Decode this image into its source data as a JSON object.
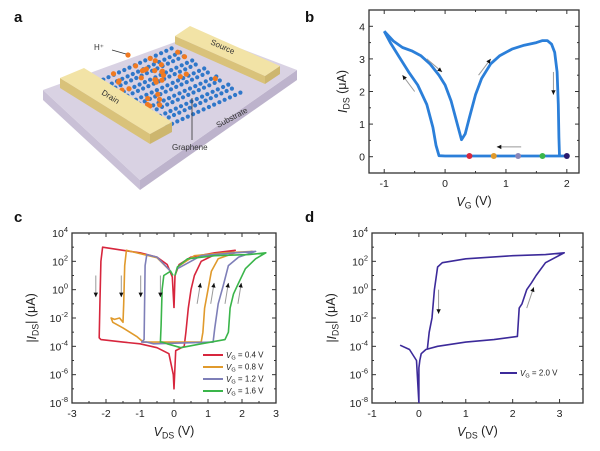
{
  "panels": {
    "a": {
      "letter": "a",
      "labels": {
        "ion": "H⁺",
        "source": "Source",
        "drain": "Drain",
        "substrate": "Substrate",
        "graphene": "Graphene"
      },
      "colors": {
        "substrate": "#d9d2e3",
        "electrode": "#f2e3a6",
        "carbon": "#2f77c9",
        "proton": "#f07a22"
      }
    },
    "b": {
      "letter": "b"
    },
    "c": {
      "letter": "c"
    },
    "d": {
      "letter": "d"
    }
  },
  "chart_data": [
    {
      "panel": "b",
      "type": "line",
      "xlabel": [
        "V",
        "G",
        " (V)"
      ],
      "ylabel": [
        "I",
        "DS",
        " (μA)"
      ],
      "xlim": [
        -1.25,
        2.2
      ],
      "ylim": [
        -0.5,
        4.5
      ],
      "yscale": "linear",
      "xticks": [
        -1,
        0,
        1,
        2
      ],
      "xtick_labels": [
        "-1",
        "0",
        "1",
        "2"
      ],
      "yticks": [
        0,
        1,
        2,
        3,
        4
      ],
      "ytick_labels": [
        "0",
        "1",
        "2",
        "3",
        "4"
      ],
      "grid": false,
      "series": [
        {
          "color": "#2b7fd9",
          "x": [
            -1,
            -0.85,
            -0.7,
            -0.55,
            -0.4,
            -0.25,
            -0.1,
            0,
            0.1,
            0.2,
            0.27,
            0.33,
            0.4,
            0.5,
            0.6,
            0.75,
            0.9,
            1.1,
            1.3,
            1.5,
            1.6,
            1.68,
            1.75,
            1.8,
            1.84,
            1.86,
            1.87,
            1.88,
            2.0,
            1.6,
            1.2,
            0.8,
            0.4,
            0,
            -0.1,
            -0.15,
            -0.2,
            -0.3,
            -0.45,
            -0.6,
            -0.75,
            -0.9,
            -1
          ],
          "y": [
            3.85,
            3.55,
            3.35,
            3.25,
            3.1,
            2.85,
            2.5,
            2.2,
            1.7,
            1.0,
            0.52,
            0.7,
            1.2,
            1.9,
            2.4,
            2.85,
            3.1,
            3.3,
            3.42,
            3.5,
            3.56,
            3.56,
            3.45,
            3.2,
            2.6,
            1.6,
            0.6,
            0.02,
            0.02,
            0.02,
            0.02,
            0.02,
            0.02,
            0.02,
            0.03,
            0.35,
            0.9,
            1.6,
            2.2,
            2.6,
            3.05,
            3.5,
            3.85
          ]
        }
      ],
      "markers": [
        {
          "x": 0.4,
          "y": 0.02,
          "color": "#d7263d"
        },
        {
          "x": 0.8,
          "y": 0.02,
          "color": "#e09a2c"
        },
        {
          "x": 1.2,
          "y": 0.02,
          "color": "#8a86b8"
        },
        {
          "x": 1.6,
          "y": 0.02,
          "color": "#3ab54a"
        },
        {
          "x": 2.0,
          "y": 0.02,
          "color": "#2a1a6e"
        }
      ],
      "annotations": [
        {
          "type": "arrow",
          "x": [
            -0.3,
            -0.05
          ],
          "y": [
            3.0,
            2.6
          ]
        },
        {
          "type": "arrow",
          "x": [
            0.55,
            0.75
          ],
          "y": [
            2.5,
            3.0
          ]
        },
        {
          "type": "arrow",
          "x": [
            1.78,
            1.78
          ],
          "y": [
            2.6,
            1.9
          ]
        },
        {
          "type": "arrow",
          "x": [
            1.25,
            0.85
          ],
          "y": [
            0.3,
            0.3
          ]
        },
        {
          "type": "arrow",
          "x": [
            -0.5,
            -0.7
          ],
          "y": [
            2.0,
            2.5
          ]
        }
      ]
    },
    {
      "panel": "c",
      "type": "line",
      "xlabel": [
        "V",
        "DS",
        " (V)"
      ],
      "ylabel": [
        "|I",
        "DS",
        "| (μA)"
      ],
      "xlim": [
        -3,
        3
      ],
      "ylim": [
        1e-08,
        10000.0
      ],
      "yscale": "log",
      "xticks": [
        -3,
        -2,
        -1,
        0,
        1,
        2,
        3
      ],
      "xtick_labels": [
        "-3",
        "-2",
        "-1",
        "0",
        "1",
        "2",
        "3"
      ],
      "yticks": [
        1e-08,
        1e-06,
        0.0001,
        0.01,
        1,
        100.0,
        10000.0
      ],
      "ytick_labels": [
        "10^-8",
        "10^-6",
        "10^-4",
        "10^-2",
        "10^0",
        "10^2",
        "10^4"
      ],
      "grid": false,
      "legend": "lower-right",
      "series": [
        {
          "name": [
            "V",
            "G",
            " = 0.4 V"
          ],
          "color": "#d7263d",
          "x": [
            0,
            -0.05,
            -0.2,
            -0.5,
            -1,
            -1.5,
            -2.1,
            -2.15,
            -2.18,
            -2.2,
            -2.15,
            -1.5,
            -1,
            -0.5,
            -0.15,
            -0.02,
            0,
            0.05,
            0.3,
            0.35,
            0.42,
            0.5,
            0.6,
            0.8,
            1.2,
            1.8,
            1.2,
            0.5,
            0.15,
            0.03,
            0
          ],
          "y": [
            0.05,
            8,
            60,
            200,
            400,
            600,
            1000,
            100,
            0.1,
            0.0004,
            0.0003,
            0.0002,
            0.00015,
            8e-05,
            3e-05,
            1e-06,
            1e-07,
            5e-05,
            0.0001,
            0.001,
            0.05,
            1,
            10,
            100,
            300,
            600,
            400,
            200,
            60,
            10,
            0.05
          ]
        },
        {
          "name": [
            "V",
            "G",
            " = 0.8 V"
          ],
          "color": "#e09a2c",
          "x": [
            -0.1,
            -0.5,
            -1,
            -1.4,
            -1.45,
            -1.48,
            -1.5,
            -1.6,
            -1.75,
            -1.85,
            -1.8,
            -1.5,
            -1.3,
            -1.1,
            -0.9,
            0.8,
            0.85,
            0.9,
            1.0,
            1.1,
            1.3,
            1.8,
            2.3,
            1.5,
            0.6,
            0.1
          ],
          "y": [
            20,
            180,
            350,
            600,
            50,
            0.1,
            0.005,
            0.01,
            0.008,
            0.01,
            0.005,
            0.002,
            0.001,
            0.0005,
            0.0002,
            0.0002,
            0.001,
            0.05,
            1,
            20,
            150,
            400,
            500,
            400,
            250,
            40
          ]
        },
        {
          "name": [
            "V",
            "G",
            " = 1.2 V"
          ],
          "color": "#7e7fb8",
          "x": [
            -0.1,
            -0.5,
            -0.8,
            -0.85,
            -0.87,
            -0.88,
            -0.95,
            -0.8,
            -0.6,
            1.15,
            1.2,
            1.3,
            1.45,
            1.6,
            1.9,
            2.4,
            1.8,
            0.8,
            0.1
          ],
          "y": [
            20,
            200,
            300,
            50,
            0.01,
            0.0003,
            0.0002,
            0.0002,
            0.00015,
            0.0002,
            0.002,
            0.1,
            2,
            50,
            200,
            500,
            400,
            250,
            30
          ]
        },
        {
          "name": [
            "V",
            "G",
            " = 1.6 V"
          ],
          "color": "#3ab54a",
          "x": [
            -0.03,
            -0.1,
            -0.3,
            -0.35,
            -0.38,
            -0.4,
            -0.35,
            -0.2,
            0.2,
            0.8,
            1.5,
            1.6,
            1.65,
            1.75,
            1.9,
            2.1,
            2.4,
            2.7,
            2.2,
            1.2,
            0.4,
            0.1,
            0.03
          ],
          "y": [
            10,
            20,
            10,
            1,
            0.003,
            0.0002,
            0.0002,
            0.00015,
            8e-05,
            0.00015,
            0.0003,
            0.001,
            0.05,
            0.5,
            3,
            30,
            150,
            400,
            300,
            250,
            150,
            40,
            10
          ]
        }
      ],
      "annotations": [
        {
          "type": "arrow",
          "x": [
            -2.3,
            -2.3
          ],
          "y": [
            10,
            0.3
          ]
        },
        {
          "type": "arrow",
          "x": [
            -1.55,
            -1.55
          ],
          "y": [
            10,
            0.3
          ]
        },
        {
          "type": "arrow",
          "x": [
            -0.98,
            -0.98
          ],
          "y": [
            10,
            0.3
          ]
        },
        {
          "type": "arrow",
          "x": [
            -0.4,
            -0.4
          ],
          "y": [
            10,
            0.3
          ]
        },
        {
          "type": "arrow",
          "x": [
            0.68,
            0.78
          ],
          "y": [
            0.1,
            3
          ]
        },
        {
          "type": "arrow",
          "x": [
            1.08,
            1.18
          ],
          "y": [
            0.1,
            3
          ]
        },
        {
          "type": "arrow",
          "x": [
            1.5,
            1.6
          ],
          "y": [
            0.1,
            3
          ]
        },
        {
          "type": "arrow",
          "x": [
            1.88,
            1.98
          ],
          "y": [
            0.1,
            3
          ]
        }
      ]
    },
    {
      "panel": "d",
      "type": "line",
      "xlabel": [
        "V",
        "DS",
        " (V)"
      ],
      "ylabel": [
        "|I",
        "DS",
        "| (μA)"
      ],
      "xlim": [
        -1,
        3.5
      ],
      "ylim": [
        1e-08,
        10000.0
      ],
      "yscale": "log",
      "xticks": [
        -1,
        0,
        1,
        2,
        3
      ],
      "xtick_labels": [
        "-1",
        "0",
        "1",
        "2",
        "3"
      ],
      "yticks": [
        1e-08,
        1e-06,
        0.0001,
        0.01,
        1,
        100.0,
        10000.0
      ],
      "ytick_labels": [
        "10^-8",
        "10^-6",
        "10^-4",
        "10^-2",
        "10^0",
        "10^2",
        "10^4"
      ],
      "grid": false,
      "legend": "lower-right",
      "series": [
        {
          "name": [
            "V",
            "G",
            " = 2.0 V"
          ],
          "color": "#3c2a9a",
          "x": [
            -0.4,
            -0.2,
            -0.05,
            0,
            0,
            0.02,
            0.05,
            0.15,
            0.4,
            1,
            1.6,
            2.1,
            2.12,
            2.14,
            2.2,
            2.3,
            2.4,
            2.5,
            2.7,
            3.1,
            2.7,
            2.0,
            1.0,
            0.5,
            0.4,
            0.33,
            0.28,
            0.22,
            0.18
          ],
          "y": [
            0.00012,
            6e-05,
            1e-05,
            1e-08,
            3e-06,
            1e-05,
            3e-05,
            6e-05,
            0.0001,
            0.0002,
            0.0003,
            0.0005,
            0.005,
            0.05,
            0.1,
            1,
            3,
            10,
            80,
            400,
            300,
            250,
            150,
            80,
            40,
            1,
            0.01,
            0.001,
            6e-05
          ]
        }
      ],
      "annotations": [
        {
          "type": "arrow",
          "x": [
            0.42,
            0.42
          ],
          "y": [
            1,
            0.02
          ]
        },
        {
          "type": "arrow",
          "x": [
            2.3,
            2.45
          ],
          "y": [
            0.05,
            1.5
          ]
        }
      ]
    }
  ]
}
